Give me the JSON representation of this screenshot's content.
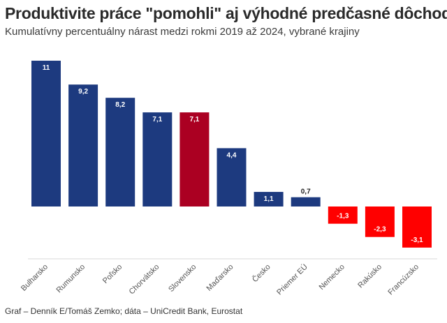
{
  "title": "Produktivite práce \"pomohli\" aj výhodné predčasné dôchodky",
  "subtitle": "Kumulatívny percentuálny nárast medzi rokmi 2019 až 2024, vybrané krajiny",
  "footer": "Graf – Denník E/Tomáš Zemko; dáta – UniCredit Bank, Eurostat",
  "colors": {
    "positive": "#1d3a7f",
    "highlight": "#ab0022",
    "negative": "#ff0000",
    "baseline": "#d8d8d8"
  },
  "chart_data": {
    "type": "bar",
    "title": "Produktivite práce \"pomohli\" aj výhodné predčasné dôchodky",
    "xlabel": "",
    "ylabel": "",
    "categories": [
      "Bulharsko",
      "Rumunsko",
      "Poľsko",
      "Chorvátsko",
      "Slovensko",
      "Maďarsko",
      "Česko",
      "Priemer EÚ",
      "Nemecko",
      "Rakúsko",
      "Francúzsko"
    ],
    "values": [
      11,
      9.2,
      8.2,
      7.1,
      7.1,
      4.4,
      1.1,
      0.7,
      -1.3,
      -2.3,
      -3.1
    ],
    "labels": [
      "11",
      "9,2",
      "8,2",
      "7,1",
      "7,1",
      "4,4",
      "1,1",
      "0,7",
      "-1,3",
      "-2,3",
      "-3,1"
    ],
    "highlight": "Slovensko",
    "ylim": [
      -4,
      11
    ],
    "grid": false,
    "legend": "none"
  }
}
